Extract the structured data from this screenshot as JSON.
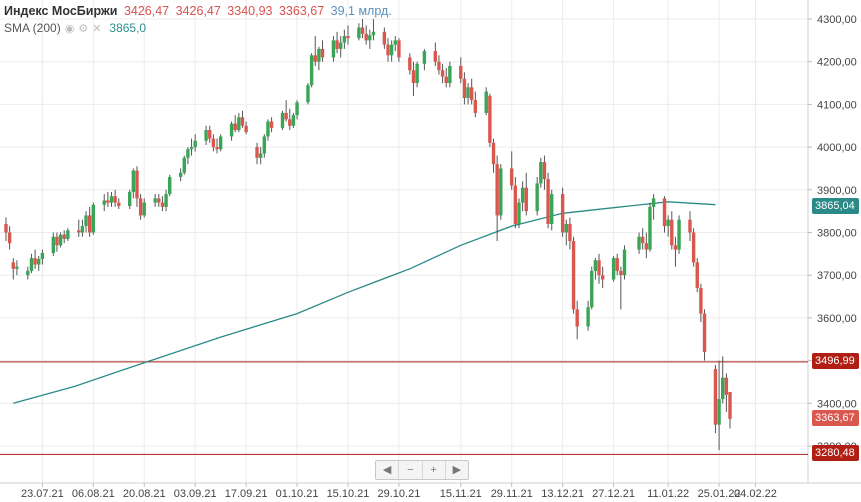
{
  "header": {
    "title": "Индекс МосБиржи",
    "open": "3426,47",
    "high": "3426,47",
    "low": "3340,93",
    "close": "3363,67",
    "volume": "39,1 млрд."
  },
  "sma": {
    "label": "SMA (200)",
    "value": "3865,0"
  },
  "nav": {
    "first": "◀",
    "minus": "−",
    "plus": "+",
    "last": "▶"
  },
  "price_tags": {
    "sma": "3865,04",
    "last": "3363,67",
    "resistance": "3496,99",
    "support": "3280,48"
  },
  "colors": {
    "up": "#3aa457",
    "down": "#d9574f",
    "sma": "#2b8a87",
    "level": "#b01e14"
  },
  "chart_data": {
    "type": "candlestick",
    "title": "Индекс МосБиржи",
    "ylim": [
      3240,
      4320
    ],
    "y_ticks": [
      "3300,00",
      "3400,00",
      "3500,00",
      "3600,00",
      "3700,00",
      "3800,00",
      "3900,00",
      "4000,00",
      "4100,00",
      "4200,00",
      "4300,00"
    ],
    "x_ticks": [
      "23.07.21",
      "06.08.21",
      "20.08.21",
      "03.09.21",
      "17.09.21",
      "01.10.21",
      "15.10.21",
      "29.10.21",
      "15.11.21",
      "29.11.21",
      "13.12.21",
      "27.12.21",
      "11.01.22",
      "25.01.22",
      "04.02.22"
    ],
    "horizontal_levels": [
      3496.99,
      3280.48
    ],
    "sma_200": [
      {
        "d": "2021-07-15",
        "v": 3400
      },
      {
        "d": "2021-08-01",
        "v": 3440
      },
      {
        "d": "2021-08-20",
        "v": 3495
      },
      {
        "d": "2021-09-10",
        "v": 3555
      },
      {
        "d": "2021-10-01",
        "v": 3610
      },
      {
        "d": "2021-10-15",
        "v": 3660
      },
      {
        "d": "2021-11-01",
        "v": 3715
      },
      {
        "d": "2021-11-15",
        "v": 3770
      },
      {
        "d": "2021-11-29",
        "v": 3815
      },
      {
        "d": "2021-12-13",
        "v": 3845
      },
      {
        "d": "2021-12-27",
        "v": 3858
      },
      {
        "d": "2022-01-11",
        "v": 3872
      },
      {
        "d": "2022-01-24",
        "v": 3865
      }
    ],
    "candles": [
      {
        "d": "2021-07-13",
        "o": 3820,
        "h": 3835,
        "l": 3780,
        "c": 3800
      },
      {
        "d": "2021-07-14",
        "o": 3800,
        "h": 3815,
        "l": 3760,
        "c": 3775
      },
      {
        "d": "2021-07-15",
        "o": 3730,
        "h": 3740,
        "l": 3690,
        "c": 3715
      },
      {
        "d": "2021-07-16",
        "o": 3715,
        "h": 3735,
        "l": 3700,
        "c": 3720
      },
      {
        "d": "2021-07-19",
        "o": 3700,
        "h": 3720,
        "l": 3690,
        "c": 3710
      },
      {
        "d": "2021-07-20",
        "o": 3710,
        "h": 3750,
        "l": 3705,
        "c": 3740
      },
      {
        "d": "2021-07-21",
        "o": 3740,
        "h": 3760,
        "l": 3715,
        "c": 3725
      },
      {
        "d": "2021-07-22",
        "o": 3725,
        "h": 3745,
        "l": 3710,
        "c": 3738
      },
      {
        "d": "2021-07-23",
        "o": 3738,
        "h": 3760,
        "l": 3725,
        "c": 3752
      },
      {
        "d": "2021-07-26",
        "o": 3752,
        "h": 3800,
        "l": 3745,
        "c": 3790
      },
      {
        "d": "2021-07-27",
        "o": 3790,
        "h": 3800,
        "l": 3755,
        "c": 3770
      },
      {
        "d": "2021-07-28",
        "o": 3770,
        "h": 3800,
        "l": 3765,
        "c": 3795
      },
      {
        "d": "2021-07-29",
        "o": 3795,
        "h": 3805,
        "l": 3775,
        "c": 3785
      },
      {
        "d": "2021-07-30",
        "o": 3785,
        "h": 3810,
        "l": 3780,
        "c": 3805
      },
      {
        "d": "2021-08-02",
        "o": 3805,
        "h": 3830,
        "l": 3790,
        "c": 3800
      },
      {
        "d": "2021-08-03",
        "o": 3800,
        "h": 3830,
        "l": 3790,
        "c": 3815
      },
      {
        "d": "2021-08-04",
        "o": 3815,
        "h": 3850,
        "l": 3800,
        "c": 3840
      },
      {
        "d": "2021-08-05",
        "o": 3840,
        "h": 3860,
        "l": 3790,
        "c": 3800
      },
      {
        "d": "2021-08-06",
        "o": 3800,
        "h": 3870,
        "l": 3795,
        "c": 3865
      },
      {
        "d": "2021-08-09",
        "o": 3865,
        "h": 3890,
        "l": 3850,
        "c": 3875
      },
      {
        "d": "2021-08-10",
        "o": 3875,
        "h": 3895,
        "l": 3860,
        "c": 3870
      },
      {
        "d": "2021-08-11",
        "o": 3870,
        "h": 3895,
        "l": 3860,
        "c": 3885
      },
      {
        "d": "2021-08-12",
        "o": 3885,
        "h": 3900,
        "l": 3860,
        "c": 3870
      },
      {
        "d": "2021-08-13",
        "o": 3870,
        "h": 3880,
        "l": 3855,
        "c": 3862
      },
      {
        "d": "2021-08-16",
        "o": 3862,
        "h": 3900,
        "l": 3855,
        "c": 3895
      },
      {
        "d": "2021-08-17",
        "o": 3895,
        "h": 3950,
        "l": 3880,
        "c": 3945
      },
      {
        "d": "2021-08-18",
        "o": 3945,
        "h": 3955,
        "l": 3860,
        "c": 3880
      },
      {
        "d": "2021-08-19",
        "o": 3880,
        "h": 3890,
        "l": 3830,
        "c": 3840
      },
      {
        "d": "2021-08-20",
        "o": 3840,
        "h": 3880,
        "l": 3835,
        "c": 3870
      },
      {
        "d": "2021-08-23",
        "o": 3870,
        "h": 3890,
        "l": 3860,
        "c": 3880
      },
      {
        "d": "2021-08-24",
        "o": 3880,
        "h": 3890,
        "l": 3860,
        "c": 3870
      },
      {
        "d": "2021-08-25",
        "o": 3870,
        "h": 3885,
        "l": 3850,
        "c": 3860
      },
      {
        "d": "2021-08-26",
        "o": 3860,
        "h": 3900,
        "l": 3850,
        "c": 3890
      },
      {
        "d": "2021-08-27",
        "o": 3890,
        "h": 3935,
        "l": 3885,
        "c": 3930
      },
      {
        "d": "2021-08-30",
        "o": 3930,
        "h": 3950,
        "l": 3920,
        "c": 3940
      },
      {
        "d": "2021-08-31",
        "o": 3940,
        "h": 3980,
        "l": 3935,
        "c": 3975
      },
      {
        "d": "2021-09-01",
        "o": 3975,
        "h": 4000,
        "l": 3960,
        "c": 3995
      },
      {
        "d": "2021-09-02",
        "o": 3995,
        "h": 4020,
        "l": 3980,
        "c": 4000
      },
      {
        "d": "2021-09-03",
        "o": 4000,
        "h": 4030,
        "l": 3990,
        "c": 4015
      },
      {
        "d": "2021-09-06",
        "o": 4015,
        "h": 4050,
        "l": 4005,
        "c": 4040
      },
      {
        "d": "2021-09-07",
        "o": 4040,
        "h": 4050,
        "l": 4010,
        "c": 4020
      },
      {
        "d": "2021-09-08",
        "o": 4020,
        "h": 4030,
        "l": 3990,
        "c": 4000
      },
      {
        "d": "2021-09-09",
        "o": 4000,
        "h": 4020,
        "l": 3985,
        "c": 3995
      },
      {
        "d": "2021-09-10",
        "o": 3995,
        "h": 4030,
        "l": 3990,
        "c": 4025
      },
      {
        "d": "2021-09-13",
        "o": 4025,
        "h": 4060,
        "l": 4015,
        "c": 4055
      },
      {
        "d": "2021-09-14",
        "o": 4055,
        "h": 4075,
        "l": 4035,
        "c": 4040
      },
      {
        "d": "2021-09-15",
        "o": 4040,
        "h": 4080,
        "l": 4035,
        "c": 4070
      },
      {
        "d": "2021-09-16",
        "o": 4070,
        "h": 4085,
        "l": 4045,
        "c": 4050
      },
      {
        "d": "2021-09-17",
        "o": 4050,
        "h": 4060,
        "l": 4030,
        "c": 4035
      },
      {
        "d": "2021-09-20",
        "o": 4000,
        "h": 4010,
        "l": 3960,
        "c": 3975
      },
      {
        "d": "2021-09-21",
        "o": 3975,
        "h": 4000,
        "l": 3960,
        "c": 3985
      },
      {
        "d": "2021-09-22",
        "o": 3985,
        "h": 4030,
        "l": 3975,
        "c": 4025
      },
      {
        "d": "2021-09-23",
        "o": 4025,
        "h": 4065,
        "l": 4015,
        "c": 4060
      },
      {
        "d": "2021-09-24",
        "o": 4060,
        "h": 4070,
        "l": 4035,
        "c": 4045
      },
      {
        "d": "2021-09-27",
        "o": 4045,
        "h": 4085,
        "l": 4040,
        "c": 4080
      },
      {
        "d": "2021-09-28",
        "o": 4080,
        "h": 4110,
        "l": 4060,
        "c": 4065
      },
      {
        "d": "2021-09-29",
        "o": 4065,
        "h": 4090,
        "l": 4040,
        "c": 4050
      },
      {
        "d": "2021-09-30",
        "o": 4050,
        "h": 4080,
        "l": 4045,
        "c": 4075
      },
      {
        "d": "2021-10-01",
        "o": 4075,
        "h": 4110,
        "l": 4065,
        "c": 4105
      },
      {
        "d": "2021-10-04",
        "o": 4105,
        "h": 4150,
        "l": 4100,
        "c": 4145
      },
      {
        "d": "2021-10-05",
        "o": 4145,
        "h": 4220,
        "l": 4140,
        "c": 4215
      },
      {
        "d": "2021-10-06",
        "o": 4215,
        "h": 4260,
        "l": 4190,
        "c": 4200
      },
      {
        "d": "2021-10-07",
        "o": 4200,
        "h": 4235,
        "l": 4180,
        "c": 4230
      },
      {
        "d": "2021-10-08",
        "o": 4230,
        "h": 4250,
        "l": 4200,
        "c": 4210
      },
      {
        "d": "2021-10-11",
        "o": 4210,
        "h": 4260,
        "l": 4200,
        "c": 4250
      },
      {
        "d": "2021-10-12",
        "o": 4250,
        "h": 4270,
        "l": 4220,
        "c": 4230
      },
      {
        "d": "2021-10-13",
        "o": 4230,
        "h": 4260,
        "l": 4210,
        "c": 4245
      },
      {
        "d": "2021-10-14",
        "o": 4245,
        "h": 4275,
        "l": 4230,
        "c": 4260
      },
      {
        "d": "2021-10-15",
        "o": 4260,
        "h": 4285,
        "l": 4240,
        "c": 4255
      },
      {
        "d": "2021-10-18",
        "o": 4255,
        "h": 4290,
        "l": 4250,
        "c": 4280
      },
      {
        "d": "2021-10-19",
        "o": 4280,
        "h": 4300,
        "l": 4255,
        "c": 4265
      },
      {
        "d": "2021-10-20",
        "o": 4265,
        "h": 4285,
        "l": 4240,
        "c": 4250
      },
      {
        "d": "2021-10-21",
        "o": 4250,
        "h": 4275,
        "l": 4230,
        "c": 4262
      },
      {
        "d": "2021-10-22",
        "o": 4262,
        "h": 4300,
        "l": 4250,
        "c": 4270
      },
      {
        "d": "2021-10-25",
        "o": 4270,
        "h": 4280,
        "l": 4230,
        "c": 4240
      },
      {
        "d": "2021-10-26",
        "o": 4240,
        "h": 4255,
        "l": 4200,
        "c": 4215
      },
      {
        "d": "2021-10-27",
        "o": 4215,
        "h": 4250,
        "l": 4200,
        "c": 4240
      },
      {
        "d": "2021-10-28",
        "o": 4240,
        "h": 4260,
        "l": 4225,
        "c": 4250
      },
      {
        "d": "2021-10-29",
        "o": 4250,
        "h": 4255,
        "l": 4200,
        "c": 4210
      },
      {
        "d": "2021-11-01",
        "o": 4210,
        "h": 4220,
        "l": 4170,
        "c": 4180
      },
      {
        "d": "2021-11-02",
        "o": 4180,
        "h": 4200,
        "l": 4120,
        "c": 4150
      },
      {
        "d": "2021-11-03",
        "o": 4150,
        "h": 4200,
        "l": 4140,
        "c": 4195
      },
      {
        "d": "2021-11-05",
        "o": 4195,
        "h": 4230,
        "l": 4180,
        "c": 4225
      },
      {
        "d": "2021-11-08",
        "o": 4225,
        "h": 4245,
        "l": 4190,
        "c": 4200
      },
      {
        "d": "2021-11-09",
        "o": 4200,
        "h": 4215,
        "l": 4170,
        "c": 4180
      },
      {
        "d": "2021-11-10",
        "o": 4180,
        "h": 4195,
        "l": 4150,
        "c": 4165
      },
      {
        "d": "2021-11-11",
        "o": 4165,
        "h": 4185,
        "l": 4140,
        "c": 4150
      },
      {
        "d": "2021-11-12",
        "o": 4150,
        "h": 4200,
        "l": 4140,
        "c": 4190
      },
      {
        "d": "2021-11-15",
        "o": 4190,
        "h": 4210,
        "l": 4150,
        "c": 4160
      },
      {
        "d": "2021-11-16",
        "o": 4160,
        "h": 4175,
        "l": 4100,
        "c": 4115
      },
      {
        "d": "2021-11-17",
        "o": 4115,
        "h": 4150,
        "l": 4100,
        "c": 4140
      },
      {
        "d": "2021-11-18",
        "o": 4140,
        "h": 4160,
        "l": 4100,
        "c": 4110
      },
      {
        "d": "2021-11-19",
        "o": 4110,
        "h": 4130,
        "l": 4070,
        "c": 4080
      },
      {
        "d": "2021-11-22",
        "o": 4080,
        "h": 4140,
        "l": 4075,
        "c": 4130
      },
      {
        "d": "2021-11-23",
        "o": 4120,
        "h": 4125,
        "l": 4000,
        "c": 4010
      },
      {
        "d": "2021-11-24",
        "o": 4010,
        "h": 4020,
        "l": 3940,
        "c": 3960
      },
      {
        "d": "2021-11-25",
        "o": 3960,
        "h": 3980,
        "l": 3780,
        "c": 3840
      },
      {
        "d": "2021-11-26",
        "o": 3840,
        "h": 3960,
        "l": 3830,
        "c": 3950
      },
      {
        "d": "2021-11-29",
        "o": 3950,
        "h": 3990,
        "l": 3900,
        "c": 3910
      },
      {
        "d": "2021-11-30",
        "o": 3910,
        "h": 3930,
        "l": 3810,
        "c": 3820
      },
      {
        "d": "2021-12-01",
        "o": 3820,
        "h": 3880,
        "l": 3810,
        "c": 3870
      },
      {
        "d": "2021-12-02",
        "o": 3870,
        "h": 3920,
        "l": 3850,
        "c": 3905
      },
      {
        "d": "2021-12-03",
        "o": 3905,
        "h": 3940,
        "l": 3840,
        "c": 3850
      },
      {
        "d": "2021-12-06",
        "o": 3850,
        "h": 3930,
        "l": 3840,
        "c": 3915
      },
      {
        "d": "2021-12-07",
        "o": 3915,
        "h": 3975,
        "l": 3905,
        "c": 3965
      },
      {
        "d": "2021-12-08",
        "o": 3965,
        "h": 3980,
        "l": 3900,
        "c": 3925
      },
      {
        "d": "2021-12-09",
        "o": 3925,
        "h": 3940,
        "l": 3810,
        "c": 3820
      },
      {
        "d": "2021-12-10",
        "o": 3820,
        "h": 3900,
        "l": 3805,
        "c": 3890
      },
      {
        "d": "2021-12-13",
        "o": 3890,
        "h": 3905,
        "l": 3790,
        "c": 3800
      },
      {
        "d": "2021-12-14",
        "o": 3800,
        "h": 3830,
        "l": 3770,
        "c": 3820
      },
      {
        "d": "2021-12-15",
        "o": 3820,
        "h": 3835,
        "l": 3760,
        "c": 3780
      },
      {
        "d": "2021-12-16",
        "o": 3780,
        "h": 3790,
        "l": 3610,
        "c": 3620
      },
      {
        "d": "2021-12-17",
        "o": 3620,
        "h": 3640,
        "l": 3550,
        "c": 3580
      },
      {
        "d": "2021-12-20",
        "o": 3580,
        "h": 3640,
        "l": 3570,
        "c": 3625
      },
      {
        "d": "2021-12-21",
        "o": 3625,
        "h": 3720,
        "l": 3620,
        "c": 3710
      },
      {
        "d": "2021-12-22",
        "o": 3710,
        "h": 3740,
        "l": 3690,
        "c": 3735
      },
      {
        "d": "2021-12-23",
        "o": 3735,
        "h": 3750,
        "l": 3680,
        "c": 3700
      },
      {
        "d": "2021-12-24",
        "o": 3700,
        "h": 3720,
        "l": 3670,
        "c": 3690
      },
      {
        "d": "2021-12-27",
        "o": 3690,
        "h": 3745,
        "l": 3685,
        "c": 3740
      },
      {
        "d": "2021-12-28",
        "o": 3740,
        "h": 3750,
        "l": 3700,
        "c": 3710
      },
      {
        "d": "2021-12-29",
        "o": 3710,
        "h": 3720,
        "l": 3620,
        "c": 3700
      },
      {
        "d": "2021-12-30",
        "o": 3700,
        "h": 3770,
        "l": 3690,
        "c": 3760
      },
      {
        "d": "2022-01-03",
        "o": 3760,
        "h": 3800,
        "l": 3750,
        "c": 3790
      },
      {
        "d": "2022-01-04",
        "o": 3790,
        "h": 3810,
        "l": 3760,
        "c": 3775
      },
      {
        "d": "2022-01-05",
        "o": 3775,
        "h": 3800,
        "l": 3740,
        "c": 3760
      },
      {
        "d": "2022-01-06",
        "o": 3760,
        "h": 3870,
        "l": 3755,
        "c": 3860
      },
      {
        "d": "2022-01-07",
        "o": 3860,
        "h": 3890,
        "l": 3830,
        "c": 3880
      },
      {
        "d": "2022-01-10",
        "o": 3880,
        "h": 3885,
        "l": 3800,
        "c": 3815
      },
      {
        "d": "2022-01-11",
        "o": 3815,
        "h": 3840,
        "l": 3790,
        "c": 3830
      },
      {
        "d": "2022-01-12",
        "o": 3830,
        "h": 3850,
        "l": 3760,
        "c": 3770
      },
      {
        "d": "2022-01-13",
        "o": 3770,
        "h": 3790,
        "l": 3720,
        "c": 3760
      },
      {
        "d": "2022-01-14",
        "o": 3760,
        "h": 3840,
        "l": 3750,
        "c": 3830
      },
      {
        "d": "2022-01-17",
        "o": 3830,
        "h": 3850,
        "l": 3780,
        "c": 3800
      },
      {
        "d": "2022-01-18",
        "o": 3800,
        "h": 3810,
        "l": 3720,
        "c": 3730
      },
      {
        "d": "2022-01-19",
        "o": 3730,
        "h": 3740,
        "l": 3660,
        "c": 3670
      },
      {
        "d": "2022-01-20",
        "o": 3670,
        "h": 3680,
        "l": 3590,
        "c": 3610
      },
      {
        "d": "2022-01-21",
        "o": 3610,
        "h": 3620,
        "l": 3500,
        "c": 3520
      },
      {
        "d": "2022-01-24",
        "o": 3480,
        "h": 3490,
        "l": 3330,
        "c": 3350
      },
      {
        "d": "2022-01-25",
        "o": 3350,
        "h": 3500,
        "l": 3290,
        "c": 3410
      },
      {
        "d": "2022-01-26",
        "o": 3410,
        "h": 3510,
        "l": 3400,
        "c": 3460
      },
      {
        "d": "2022-01-27",
        "o": 3460,
        "h": 3470,
        "l": 3380,
        "c": 3420
      },
      {
        "d": "2022-01-28",
        "o": 3426.47,
        "h": 3426.47,
        "l": 3340.93,
        "c": 3363.67
      }
    ]
  }
}
